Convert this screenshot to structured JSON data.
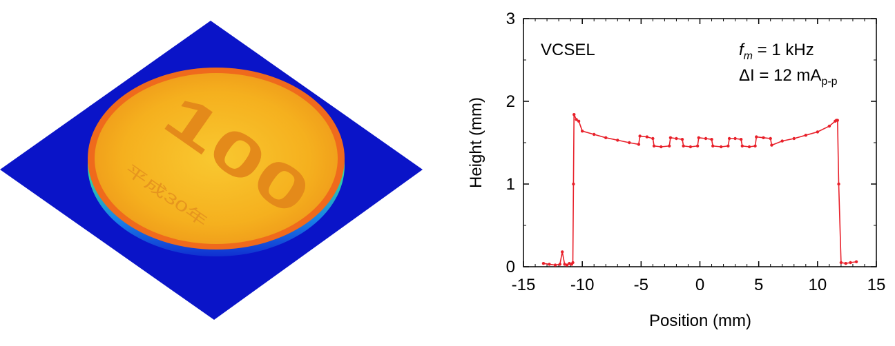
{
  "image_left": {
    "coin_text_value": "100",
    "coin_text_era": "平成30年",
    "colors": {
      "base": "#0a14c8",
      "coin_face": "#f4b21c",
      "coin_rim": "#f06a1c"
    }
  },
  "chart_data": {
    "type": "line",
    "xlabel": "Position (mm)",
    "ylabel": "Height (mm)",
    "xlim": [
      -15,
      15
    ],
    "ylim": [
      0,
      3
    ],
    "xticks": [
      "-15",
      "-10",
      "-5",
      "0",
      "5",
      "10",
      "15"
    ],
    "yticks": [
      "0",
      "1",
      "2",
      "3"
    ],
    "grid": false,
    "annotations": {
      "label": "VCSEL",
      "fm_symbol": "f",
      "fm_sub": "m",
      "fm_value": " = 1 kHz",
      "di_symbol": "ΔI",
      "di_value": " = 12 mA",
      "di_sub": "p-p"
    },
    "series": [
      {
        "color": "#e8202a",
        "x": [
          -13.3,
          -12.8,
          -12.3,
          -11.9,
          -11.7,
          -11.5,
          -11.3,
          -11.1,
          -10.9,
          -10.8,
          -10.75,
          -10.7,
          -10.5,
          -10.3,
          -10.0,
          -9.0,
          -8.0,
          -7.0,
          -6.0,
          -5.2,
          -5.1,
          -4.5,
          -4.0,
          -3.9,
          -3.3,
          -2.6,
          -2.5,
          -2.0,
          -1.5,
          -1.4,
          -0.8,
          -0.2,
          -0.1,
          0.5,
          1.0,
          1.1,
          1.8,
          2.4,
          2.5,
          3.0,
          3.5,
          3.6,
          4.2,
          4.7,
          4.8,
          5.4,
          6.0,
          6.1,
          7.0,
          8.0,
          9.0,
          10.0,
          11.0,
          11.5,
          11.6,
          11.7,
          11.8,
          12.0,
          12.4,
          12.8,
          13.3
        ],
        "y": [
          0.04,
          0.03,
          0.02,
          0.03,
          0.18,
          0.03,
          0.02,
          0.04,
          0.03,
          0.05,
          1.0,
          1.84,
          1.78,
          1.76,
          1.64,
          1.6,
          1.56,
          1.53,
          1.5,
          1.48,
          1.58,
          1.57,
          1.55,
          1.46,
          1.45,
          1.46,
          1.56,
          1.55,
          1.54,
          1.46,
          1.45,
          1.46,
          1.56,
          1.55,
          1.54,
          1.46,
          1.45,
          1.46,
          1.55,
          1.55,
          1.54,
          1.46,
          1.45,
          1.46,
          1.57,
          1.56,
          1.55,
          1.47,
          1.52,
          1.55,
          1.59,
          1.63,
          1.7,
          1.76,
          1.77,
          1.77,
          1.0,
          0.05,
          0.04,
          0.05,
          0.06
        ]
      }
    ]
  }
}
